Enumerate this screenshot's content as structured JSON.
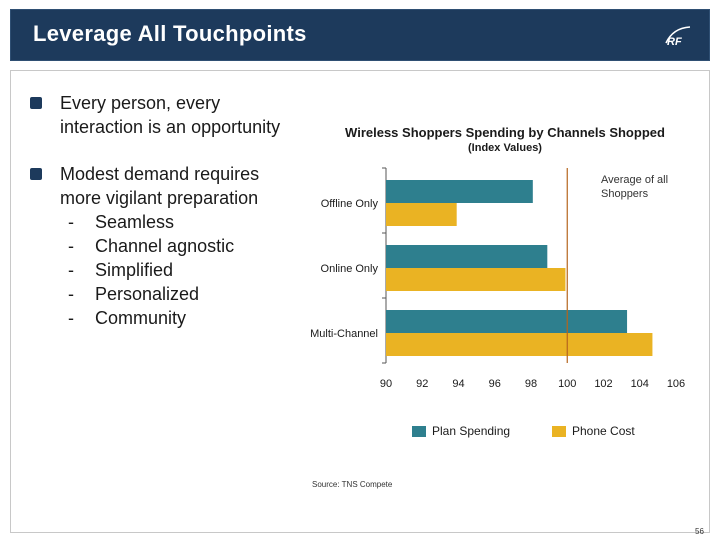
{
  "header": {
    "title": "Leverage All Touchpoints"
  },
  "bullets": [
    {
      "text": "Every person, every interaction is an opportunity"
    },
    {
      "text": "Modest demand requires more vigilant preparation",
      "sub_items": [
        "Seamless",
        "Channel agnostic",
        "Simplified",
        "Personalized",
        "Community"
      ]
    }
  ],
  "sub_dash": "-",
  "chart_data": {
    "type": "bar",
    "orientation": "horizontal",
    "title": "Wireless Shoppers Spending by Channels Shopped",
    "subtitle": "(Index Values)",
    "categories": [
      "Offline Only",
      "Online Only",
      "Multi-Channel"
    ],
    "series": [
      {
        "name": "Plan Spending",
        "color": "#2e7f8e",
        "values": [
          98.1,
          98.9,
          103.3
        ]
      },
      {
        "name": "Phone Cost",
        "color": "#eab323",
        "values": [
          93.9,
          99.9,
          104.7
        ]
      }
    ],
    "xlim": [
      90,
      106
    ],
    "xticks": [
      "90",
      "92",
      "94",
      "96",
      "98",
      "100",
      "102",
      "104",
      "106"
    ],
    "reference_line": {
      "value": 100,
      "label": "Average of all Shoppers",
      "color": "#b5651d"
    },
    "legend_position": "bottom",
    "grid": false
  },
  "source": "Source: TNS Compete",
  "page_number": "56",
  "colors": {
    "header_bg": "#1d3a5c",
    "bullet": "#1d3a5c"
  }
}
